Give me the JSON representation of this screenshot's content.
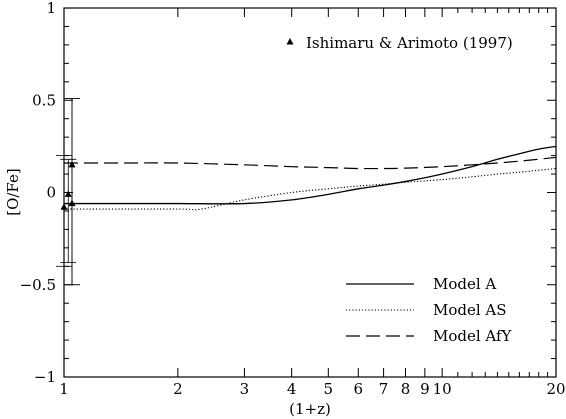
{
  "chart_data": {
    "type": "line",
    "xlabel": "(1+z)",
    "ylabel": "[O/Fe]",
    "xscale": "log",
    "xlim": [
      1,
      20
    ],
    "ylim": [
      -1,
      1
    ],
    "x_ticks": [
      {
        "value": 1,
        "label": "1"
      },
      {
        "value": 2,
        "label": "2"
      },
      {
        "value": 3,
        "label": "3"
      },
      {
        "value": 4,
        "label": "4"
      },
      {
        "value": 5,
        "label": "5"
      },
      {
        "value": 6,
        "label": "6"
      },
      {
        "value": 7,
        "label": "7"
      },
      {
        "value": 8,
        "label": "8"
      },
      {
        "value": 9,
        "label": "9"
      },
      {
        "value": 10,
        "label": "10"
      },
      {
        "value": 20,
        "label": "20"
      }
    ],
    "y_ticks": [
      {
        "value": -1,
        "label": "−1"
      },
      {
        "value": -0.5,
        "label": "−0.5"
      },
      {
        "value": 0,
        "label": "0"
      },
      {
        "value": 0.5,
        "label": "0.5"
      },
      {
        "value": 1,
        "label": "1"
      }
    ],
    "legend_placement": "bottom-right",
    "series": [
      {
        "name": "Model A",
        "style": "solid",
        "x": [
          1.0,
          1.5,
          2.0,
          3.0,
          4.0,
          5.0,
          6.0,
          7.0,
          8.0,
          9.0,
          10.0,
          12.0,
          14.0,
          16.0,
          18.0,
          20.0
        ],
        "y": [
          -0.06,
          -0.06,
          -0.06,
          -0.06,
          -0.04,
          -0.01,
          0.02,
          0.04,
          0.06,
          0.08,
          0.1,
          0.14,
          0.18,
          0.21,
          0.235,
          0.25
        ]
      },
      {
        "name": "Model AS",
        "style": "dotted",
        "x": [
          1.0,
          2.0,
          2.3,
          3.0,
          4.0,
          5.0,
          6.0,
          7.0,
          8.0,
          10.0,
          12.0,
          14.0,
          16.0,
          20.0
        ],
        "y": [
          -0.09,
          -0.09,
          -0.09,
          -0.04,
          0.0,
          0.02,
          0.035,
          0.045,
          0.055,
          0.07,
          0.085,
          0.1,
          0.11,
          0.13
        ]
      },
      {
        "name": "Model AfY",
        "style": "dashed",
        "x": [
          1.0,
          1.5,
          2.0,
          3.0,
          4.0,
          5.0,
          6.0,
          7.0,
          8.0,
          10.0,
          12.0,
          14.0,
          16.0,
          20.0
        ],
        "y": [
          0.16,
          0.16,
          0.16,
          0.15,
          0.14,
          0.135,
          0.13,
          0.13,
          0.132,
          0.14,
          0.15,
          0.16,
          0.17,
          0.19
        ]
      },
      {
        "name": "Ishimaru & Arimoto (1997)",
        "style": "triangle-markers",
        "points": [
          {
            "x": 1.0,
            "y": -0.08,
            "err_low": -0.4,
            "err_high": 0.2
          },
          {
            "x": 1.02,
            "y": -0.01,
            "err_low": -0.38,
            "err_high": 0.18
          },
          {
            "x": 1.05,
            "y": 0.15,
            "err_low": -0.5,
            "err_high": 0.51
          },
          {
            "x": 1.05,
            "y": -0.06,
            "err_low": -0.5,
            "err_high": 0.51
          }
        ]
      }
    ]
  }
}
